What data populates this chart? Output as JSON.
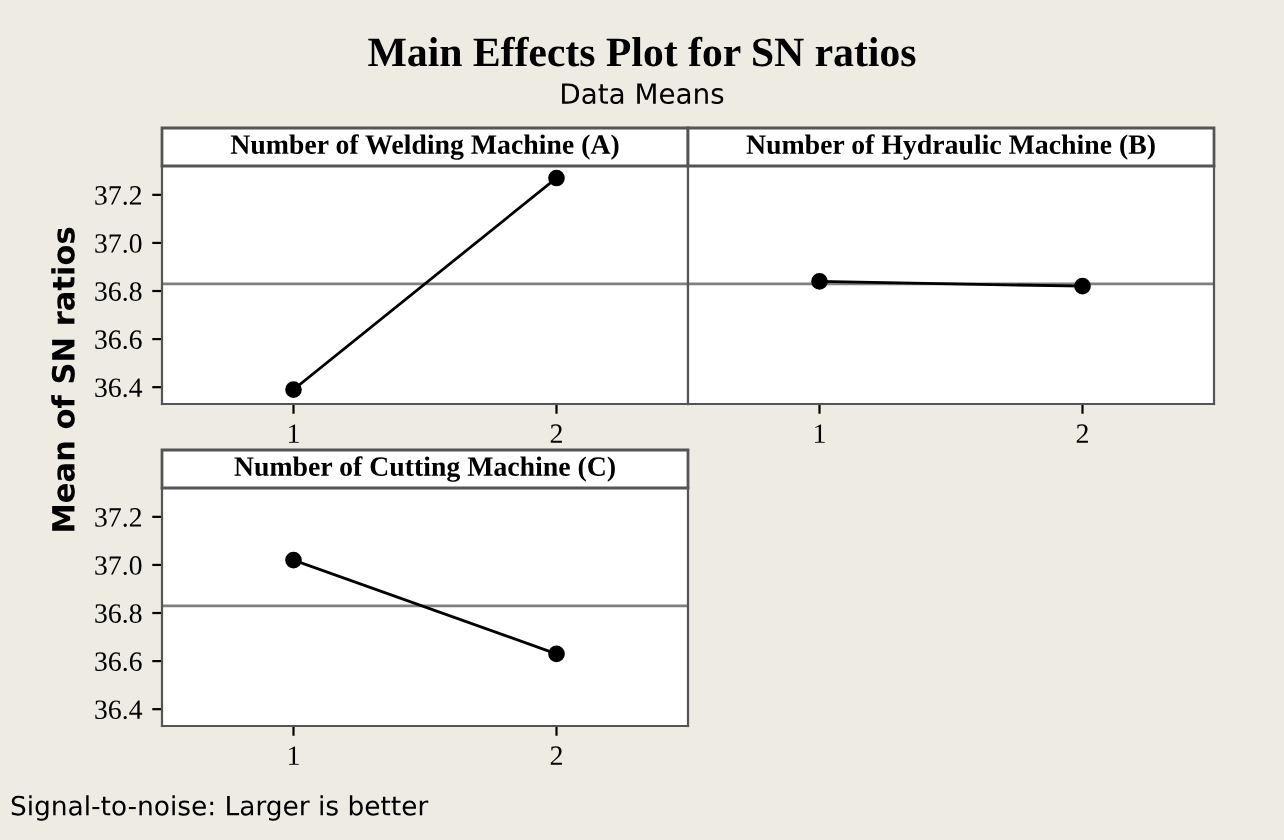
{
  "chart_data": [
    {
      "type": "other",
      "title": "Main Effects Plot for SN ratios",
      "subtitle": "Data Means",
      "ylabel": "Mean of SN ratios",
      "annotations": [
        "Signal-to-noise: Larger is better"
      ]
    },
    {
      "type": "line",
      "title": "Number of Welding Machine (A)",
      "categories": [
        "1",
        "2"
      ],
      "series": [
        {
          "color": "#000000",
          "values": [
            36.39,
            37.27
          ]
        }
      ],
      "ylim": [
        36.33,
        37.32
      ],
      "yticks": [
        36.4,
        36.6,
        36.8,
        {
          "value": 37,
          "label": "37.0"
        },
        37.2
      ],
      "ref_lines": [
        {
          "axis": "y",
          "value": 36.83,
          "color": "#808080"
        }
      ],
      "marker": "circle",
      "line_style": "solid",
      "grid": false,
      "legend": false
    },
    {
      "type": "line",
      "title": "Number of Hydraulic Machine (B)",
      "categories": [
        "1",
        "2"
      ],
      "series": [
        {
          "color": "#000000",
          "values": [
            36.84,
            36.82
          ]
        }
      ],
      "ylim": [
        36.33,
        37.32
      ],
      "ref_lines": [
        {
          "axis": "y",
          "value": 36.83,
          "color": "#808080"
        }
      ],
      "marker": "circle",
      "line_style": "solid",
      "grid": false,
      "legend": false,
      "tick_labels": "x"
    },
    {
      "type": "line",
      "title": "Number of Cutting Machine (C)",
      "categories": [
        "1",
        "2"
      ],
      "series": [
        {
          "color": "#000000",
          "values": [
            37.02,
            36.63
          ]
        }
      ],
      "ylim": [
        36.33,
        37.32
      ],
      "yticks": [
        36.4,
        36.6,
        36.8,
        {
          "value": 37,
          "label": "37.0"
        },
        37.2
      ],
      "ref_lines": [
        {
          "axis": "y",
          "value": 36.83,
          "color": "#808080"
        }
      ],
      "marker": "circle",
      "line_style": "solid",
      "grid": false,
      "legend": false
    }
  ]
}
